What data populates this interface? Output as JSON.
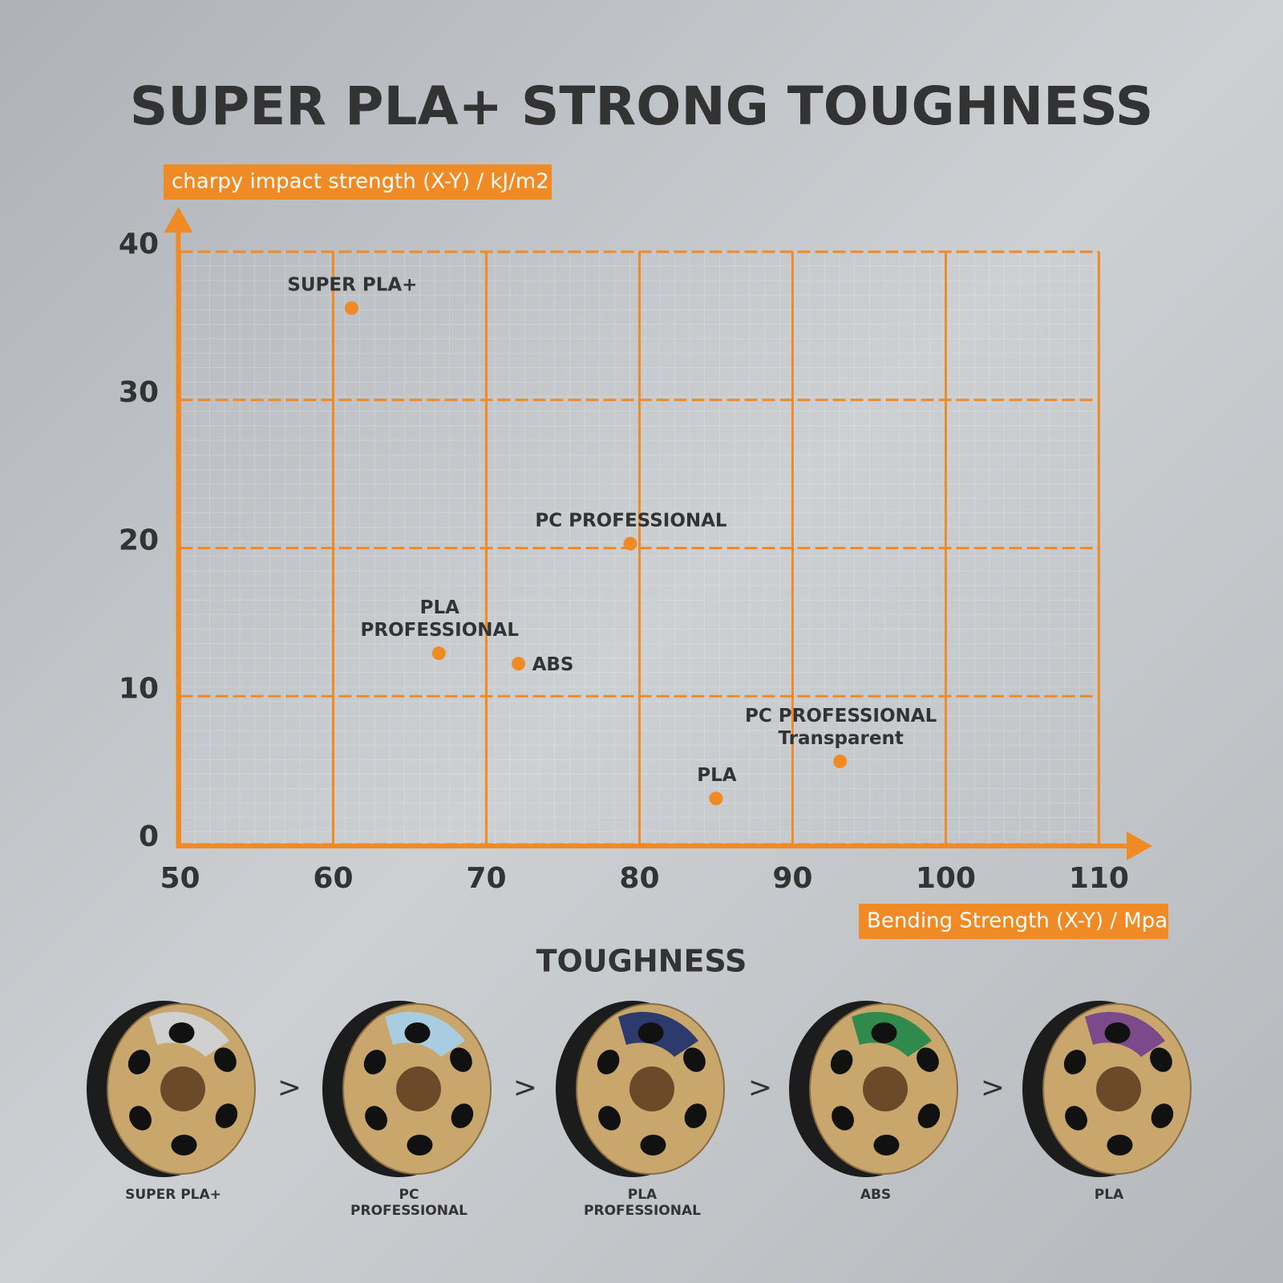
{
  "chart_data": {
    "type": "scatter",
    "title": "SUPER PLA+ STRONG TOUGHNESS",
    "ylabel": "charpy impact strength (X-Y) / kJ/m2",
    "xlabel": "Bending Strength (X-Y) / Mpa",
    "x": [
      61.2,
      79.4,
      66.9,
      72.1,
      85.0,
      93.1
    ],
    "values": [
      36.2,
      20.3,
      12.9,
      12.2,
      3.1,
      5.6
    ],
    "labels": [
      [
        "SUPER PLA+"
      ],
      [
        "PC PROFESSIONAL"
      ],
      [
        "PLA",
        "PROFESSIONAL"
      ],
      [
        "ABS"
      ],
      [
        "PLA"
      ],
      [
        "PC PROFESSIONAL",
        "Transparent"
      ]
    ],
    "color": "#f08a24",
    "xlim": [
      50,
      110
    ],
    "ylim": [
      0,
      40
    ],
    "xticks": [
      50,
      60,
      70,
      80,
      90,
      100,
      110
    ],
    "yticks": [
      0,
      10,
      20,
      30,
      40
    ],
    "grid": true
  },
  "toughness": {
    "title": "TOUGHNESS",
    "separator": ">",
    "items": [
      [
        "SUPER PLA+"
      ],
      [
        "PC",
        "PROFESSIONAL"
      ],
      [
        "PLA",
        "PROFESSIONAL"
      ],
      [
        "ABS"
      ],
      [
        "PLA"
      ]
    ]
  }
}
